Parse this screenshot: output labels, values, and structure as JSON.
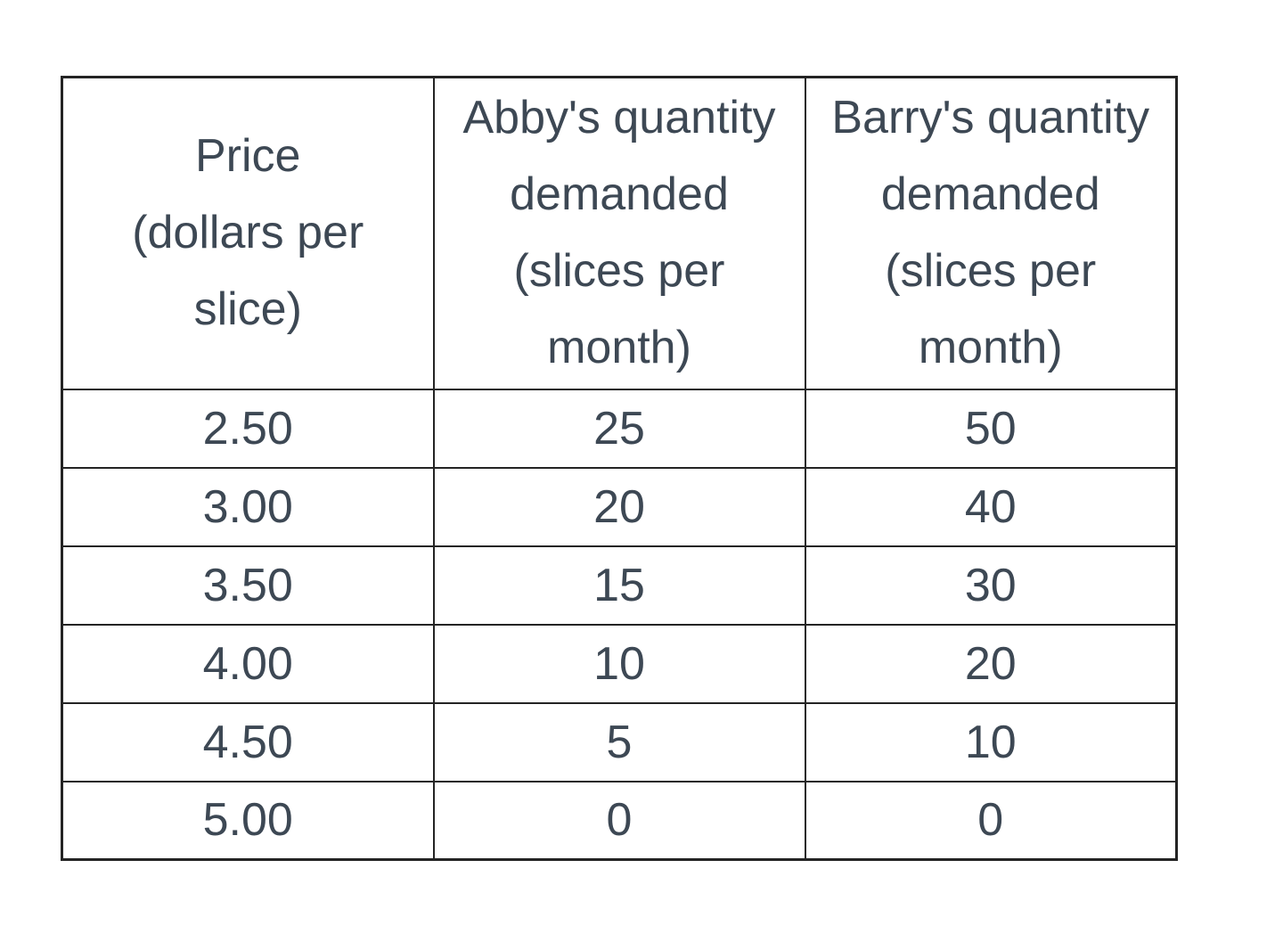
{
  "colors": {
    "text": "#3d4854",
    "border": "#242424",
    "background": "#ffffff"
  },
  "display": {
    "headers": [
      "Price\n(dollars per\nslice)",
      "Abby's quantity\ndemanded\n(slices per\nmonth)",
      "Barry's quantity\ndemanded\n(slices per\nmonth)"
    ]
  },
  "chart_data": {
    "type": "table",
    "columns": [
      "Price (dollars per slice)",
      "Abby's quantity demanded (slices per month)",
      "Barry's quantity demanded (slices per month)"
    ],
    "rows": [
      [
        "2.50",
        "25",
        "50"
      ],
      [
        "3.00",
        "20",
        "40"
      ],
      [
        "3.50",
        "15",
        "30"
      ],
      [
        "4.00",
        "10",
        "20"
      ],
      [
        "4.50",
        "5",
        "10"
      ],
      [
        "5.00",
        "0",
        "0"
      ]
    ]
  }
}
